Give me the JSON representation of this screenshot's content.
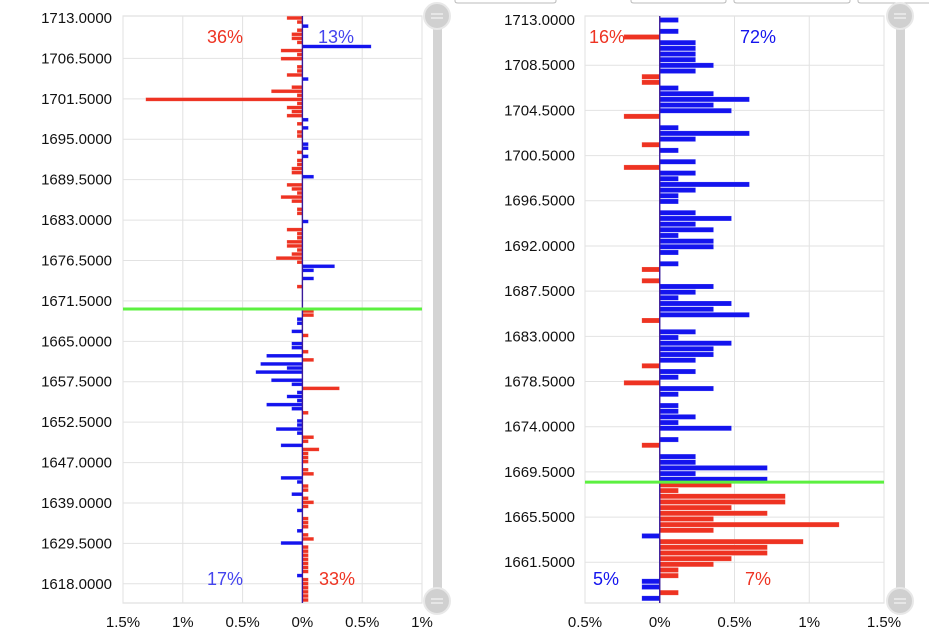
{
  "colors": {
    "ask": "#ee3322",
    "bid": "#1414ee",
    "bid_label": "#4444ee",
    "price_line": "#5cf040",
    "grid": "#e2e2e2",
    "scroll": "#d4d4d4"
  },
  "chart_data": [
    {
      "type": "bar",
      "orientation": "horizontal-diverging",
      "title": "",
      "xlabel": "",
      "ylabel": "",
      "xlim": [
        -1.5,
        1.0
      ],
      "x_ticks": [
        -1.5,
        -1.0,
        -0.5,
        0,
        0.5,
        1.0
      ],
      "x_tick_labels": [
        "1.5%",
        "1%",
        "0.5%",
        "0%",
        "0.5%",
        "1%"
      ],
      "y_tick_labels": [
        "1713.0000",
        "1706.5000",
        "1701.5000",
        "1695.0000",
        "1689.5000",
        "1683.0000",
        "1676.5000",
        "1671.5000",
        "1665.0000",
        "1657.5000",
        "1652.5000",
        "1647.0000",
        "1639.0000",
        "1629.5000",
        "1618.0000"
      ],
      "row_count": 144,
      "current_price_row": 71.5,
      "annotations": {
        "top_left": "36%",
        "top_right": "13%",
        "bottom_left": "17%",
        "bottom_right": "33%"
      },
      "bars": [
        [
          0,
          -0.13
        ],
        [
          1,
          -0.045
        ],
        [
          2,
          0.05
        ],
        [
          3,
          -0.045
        ],
        [
          4,
          -0.09
        ],
        [
          5,
          -0.09
        ],
        [
          6,
          -0.045
        ],
        [
          7,
          0.575
        ],
        [
          8,
          -0.18
        ],
        [
          9,
          -0.045
        ],
        [
          10,
          -0.18
        ],
        [
          12,
          -0.045
        ],
        [
          13,
          -0.045
        ],
        [
          14,
          -0.13
        ],
        [
          15,
          0.05
        ],
        [
          17,
          -0.09
        ],
        [
          18,
          -0.26
        ],
        [
          19,
          -0.045
        ],
        [
          20,
          -1.31
        ],
        [
          21,
          -0.045
        ],
        [
          22,
          -0.13
        ],
        [
          23,
          -0.09
        ],
        [
          24,
          -0.13
        ],
        [
          25,
          0.05
        ],
        [
          26,
          -0.045
        ],
        [
          27,
          0.05
        ],
        [
          28,
          -0.045
        ],
        [
          29,
          -0.045
        ],
        [
          31,
          0.05
        ],
        [
          32,
          0.05
        ],
        [
          33,
          -0.045
        ],
        [
          34,
          0.05
        ],
        [
          35,
          -0.045
        ],
        [
          36,
          -0.045
        ],
        [
          37,
          -0.09
        ],
        [
          38,
          -0.09
        ],
        [
          39,
          0.095
        ],
        [
          41,
          -0.13
        ],
        [
          42,
          -0.09
        ],
        [
          43,
          -0.045
        ],
        [
          44,
          -0.18
        ],
        [
          45,
          -0.09
        ],
        [
          47,
          -0.045
        ],
        [
          48,
          -0.045
        ],
        [
          50,
          0.05
        ],
        [
          52,
          -0.13
        ],
        [
          53,
          -0.045
        ],
        [
          54,
          -0.045
        ],
        [
          55,
          -0.13
        ],
        [
          56,
          -0.13
        ],
        [
          57,
          -0.045
        ],
        [
          58,
          -0.09
        ],
        [
          59,
          -0.22
        ],
        [
          60,
          -0.045
        ],
        [
          61,
          0.27
        ],
        [
          62,
          0.095
        ],
        [
          64,
          0.095
        ],
        [
          66,
          -0.045
        ],
        [
          72,
          0.095
        ],
        [
          73,
          0.095
        ],
        [
          74,
          -0.045
        ],
        [
          75,
          -0.045
        ],
        [
          77,
          -0.09
        ],
        [
          78,
          0.05
        ],
        [
          80,
          -0.09
        ],
        [
          81,
          -0.09
        ],
        [
          82,
          0.05
        ],
        [
          83,
          -0.3
        ],
        [
          84,
          0.095
        ],
        [
          85,
          -0.35
        ],
        [
          86,
          -0.13
        ],
        [
          87,
          -0.39
        ],
        [
          89,
          -0.26
        ],
        [
          90,
          -0.09
        ],
        [
          91,
          0.31
        ],
        [
          92,
          -0.045
        ],
        [
          93,
          -0.13
        ],
        [
          94,
          -0.045
        ],
        [
          95,
          -0.3
        ],
        [
          96,
          -0.09
        ],
        [
          97,
          0.05
        ],
        [
          99,
          -0.045
        ],
        [
          100,
          -0.045
        ],
        [
          101,
          -0.22
        ],
        [
          102,
          -0.045
        ],
        [
          103,
          0.095
        ],
        [
          104,
          0.05
        ],
        [
          105,
          -0.18
        ],
        [
          106,
          0.14
        ],
        [
          107,
          0.05
        ],
        [
          108,
          0.05
        ],
        [
          109,
          0.05
        ],
        [
          111,
          0.05
        ],
        [
          112,
          0.095
        ],
        [
          113,
          -0.18
        ],
        [
          114,
          -0.045
        ],
        [
          115,
          0.05
        ],
        [
          116,
          0.05
        ],
        [
          117,
          -0.09
        ],
        [
          118,
          0.05
        ],
        [
          119,
          0.095
        ],
        [
          120,
          0.05
        ],
        [
          121,
          -0.045
        ],
        [
          123,
          0.05
        ],
        [
          124,
          0.05
        ],
        [
          125,
          0.05
        ],
        [
          126,
          -0.045
        ],
        [
          127,
          0.05
        ],
        [
          128,
          0.095
        ],
        [
          129,
          -0.18
        ],
        [
          130,
          0.05
        ],
        [
          131,
          0.05
        ],
        [
          132,
          0.05
        ],
        [
          133,
          0.05
        ],
        [
          134,
          0.05
        ],
        [
          135,
          0.05
        ],
        [
          136,
          0.05
        ],
        [
          137,
          -0.045
        ],
        [
          138,
          0.05
        ],
        [
          139,
          0.05
        ],
        [
          140,
          0.05
        ],
        [
          141,
          0.05
        ],
        [
          142,
          0.05
        ],
        [
          143,
          0.05
        ]
      ]
    },
    {
      "type": "bar",
      "orientation": "horizontal-diverging",
      "title": "",
      "xlabel": "",
      "ylabel": "",
      "xlim": [
        -0.5,
        1.5
      ],
      "x_ticks": [
        -0.5,
        0,
        0.5,
        1.0,
        1.5
      ],
      "x_tick_labels": [
        "0.5%",
        "0%",
        "0.5%",
        "1%",
        "1.5%"
      ],
      "y_tick_labels": [
        "1713.0000",
        "1708.5000",
        "1704.5000",
        "1700.5000",
        "1696.5000",
        "1692.0000",
        "1687.5000",
        "1683.0000",
        "1678.5000",
        "1674.0000",
        "1669.5000",
        "1665.5000",
        "1661.5000"
      ],
      "row_count": 103,
      "current_price_row": 81.5,
      "annotations": {
        "top_left": "16%",
        "top_right": "72%",
        "bottom_left": "5%",
        "bottom_right": "7%"
      },
      "bars": [
        [
          0,
          0.125
        ],
        [
          2,
          0.125
        ],
        [
          3,
          -0.24
        ],
        [
          4,
          0.24
        ],
        [
          5,
          0.24
        ],
        [
          6,
          0.24
        ],
        [
          7,
          0.24
        ],
        [
          8,
          0.36
        ],
        [
          9,
          0.24
        ],
        [
          10,
          -0.12
        ],
        [
          11,
          -0.12
        ],
        [
          12,
          0.125
        ],
        [
          13,
          0.36
        ],
        [
          14,
          0.6
        ],
        [
          15,
          0.36
        ],
        [
          16,
          0.48
        ],
        [
          17,
          -0.24
        ],
        [
          19,
          0.125
        ],
        [
          20,
          0.6
        ],
        [
          21,
          0.24
        ],
        [
          22,
          -0.12
        ],
        [
          23,
          0.125
        ],
        [
          25,
          0.24
        ],
        [
          26,
          -0.24
        ],
        [
          27,
          0.24
        ],
        [
          28,
          0.125
        ],
        [
          29,
          0.6
        ],
        [
          30,
          0.24
        ],
        [
          31,
          0.125
        ],
        [
          32,
          0.125
        ],
        [
          34,
          0.24
        ],
        [
          35,
          0.48
        ],
        [
          36,
          0.24
        ],
        [
          37,
          0.36
        ],
        [
          38,
          0.125
        ],
        [
          39,
          0.36
        ],
        [
          40,
          0.36
        ],
        [
          41,
          0.125
        ],
        [
          43,
          0.125
        ],
        [
          44,
          -0.12
        ],
        [
          46,
          -0.12
        ],
        [
          47,
          0.36
        ],
        [
          48,
          0.24
        ],
        [
          49,
          0.125
        ],
        [
          50,
          0.48
        ],
        [
          51,
          0.36
        ],
        [
          52,
          0.6
        ],
        [
          53,
          -0.12
        ],
        [
          55,
          0.24
        ],
        [
          56,
          0.125
        ],
        [
          57,
          0.48
        ],
        [
          58,
          0.36
        ],
        [
          59,
          0.36
        ],
        [
          60,
          0.24
        ],
        [
          61,
          -0.12
        ],
        [
          62,
          0.24
        ],
        [
          63,
          0.125
        ],
        [
          64,
          -0.24
        ],
        [
          65,
          0.36
        ],
        [
          66,
          0.125
        ],
        [
          68,
          0.125
        ],
        [
          69,
          0.125
        ],
        [
          70,
          0.24
        ],
        [
          71,
          0.125
        ],
        [
          72,
          0.48
        ],
        [
          74,
          0.125
        ],
        [
          75,
          -0.12
        ],
        [
          77,
          0.24
        ],
        [
          78,
          0.24
        ],
        [
          79,
          0.72
        ],
        [
          80,
          0.24
        ],
        [
          81,
          0.72
        ],
        [
          82,
          0.48
        ],
        [
          83,
          0.125
        ],
        [
          84,
          0.84
        ],
        [
          85,
          0.84
        ],
        [
          86,
          0.48
        ],
        [
          87,
          0.72
        ],
        [
          88,
          0.36
        ],
        [
          89,
          1.2
        ],
        [
          90,
          0.36
        ],
        [
          91,
          -0.12
        ],
        [
          92,
          0.96
        ],
        [
          93,
          0.72
        ],
        [
          94,
          0.72
        ],
        [
          95,
          0.48
        ],
        [
          96,
          0.36
        ],
        [
          97,
          0.125
        ],
        [
          98,
          0.125
        ],
        [
          99,
          -0.12
        ],
        [
          100,
          -0.12
        ],
        [
          101,
          0.125
        ],
        [
          102,
          -0.12
        ]
      ]
    }
  ]
}
